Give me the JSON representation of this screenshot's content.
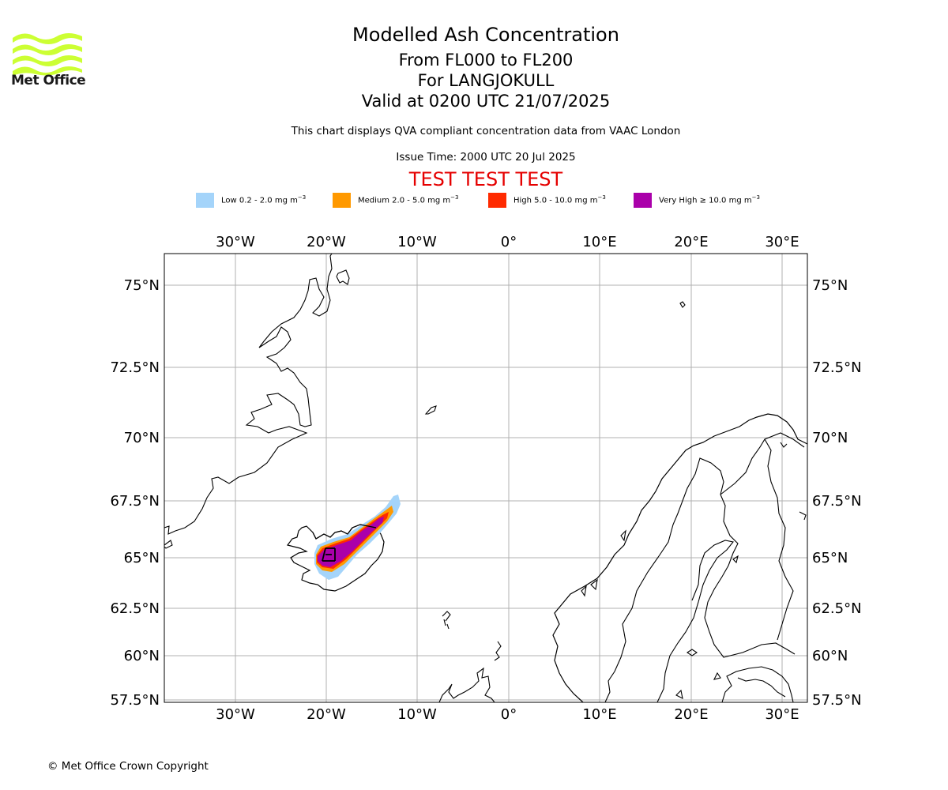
{
  "brand": {
    "logo_text": "Met Office"
  },
  "titles": {
    "title": "Modelled Ash Concentration",
    "levels": "From FL000 to FL200",
    "volcano": "For LANGJOKULL",
    "valid": "Valid at 0200 UTC 21/07/2025",
    "note": "This chart displays QVA compliant concentration data from VAAC London",
    "issue": "Issue Time: 2000 UTC 20 Jul 2025",
    "test_banner": "TEST TEST TEST"
  },
  "legend": [
    {
      "label": "Low 0.2 - 2.0 mg m",
      "color": "#a4d4fa"
    },
    {
      "label": "Medium 2.0 - 5.0 mg m",
      "color": "#ff9900"
    },
    {
      "label": "High 5.0 - 10.0 mg m",
      "color": "#ff2a00"
    },
    {
      "label": "Very High ≥ 10.0 mg m",
      "color": "#aa00aa"
    }
  ],
  "legend_unit_exponent": "−3",
  "map": {
    "lon_ticks": [
      "30°W",
      "20°W",
      "10°W",
      "0°",
      "10°E",
      "20°E",
      "30°E"
    ],
    "lat_ticks": [
      "75°N",
      "72.5°N",
      "70°N",
      "67.5°N",
      "65°N",
      "62.5°N",
      "60°N",
      "57.5°N"
    ],
    "colors": {
      "grid": "#b0b0b0",
      "coast": "#000000",
      "logo": "#ccff33"
    }
  },
  "footer": {
    "copyright": "© Met Office Crown Copyright"
  }
}
